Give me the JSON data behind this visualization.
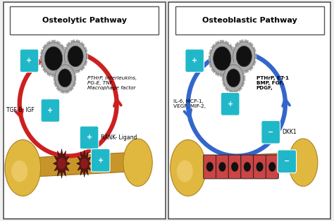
{
  "bg_color": "#f0f0f0",
  "panel_bg": "#ffffff",
  "border_color": "#555555",
  "left_title": "Osteolytic Pathway",
  "right_title": "Osteoblastic Pathway",
  "arrow_red": "#cc2020",
  "arrow_blue": "#3366cc",
  "teal_box": "#20b8c8",
  "bone_shaft": "#c8a040",
  "bone_knob": "#e0c060",
  "gear_body": "#111111",
  "gear_teeth": "#aaaaaa",
  "left_labels": {
    "factors": "PTHrP, Interleukins,\nPG-E, TNF,\nMacrophage factor",
    "left_mid": "TGF-B, IGF",
    "rank": "RANK- Ligand"
  },
  "right_labels": {
    "factors": "PTHrP, ET-1\nBMP, FGF,\nPDGF,",
    "left_mid": "IL-6, MCP-1,\nVEGF, MIP-2,",
    "dkk1": "DKK1"
  }
}
